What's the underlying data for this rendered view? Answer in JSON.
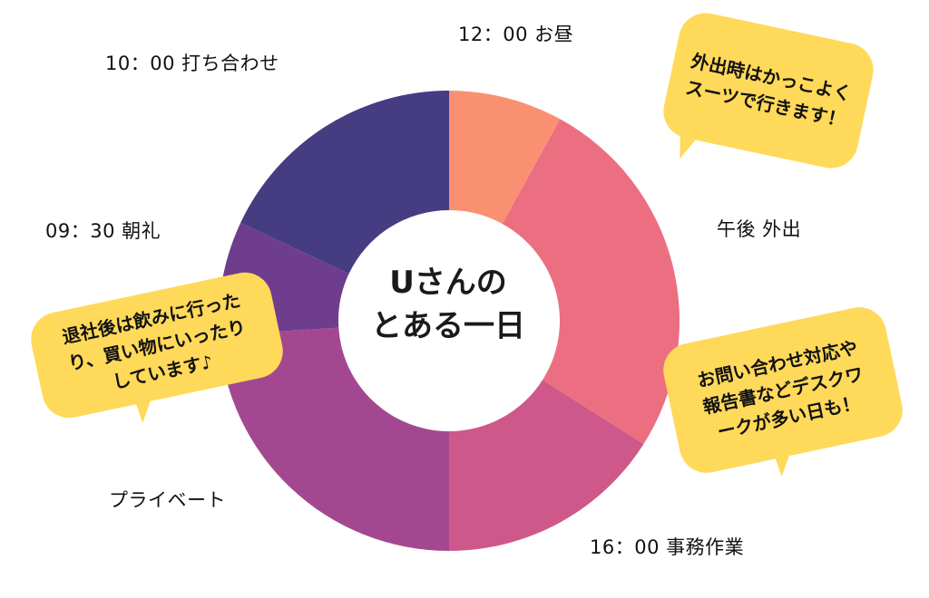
{
  "chart_data": {
    "type": "pie",
    "style": "donut",
    "center_title": [
      "Uさんの",
      "とある一日"
    ],
    "slices": [
      {
        "label": "12：00 お昼",
        "value": 8,
        "color": "#FA9072"
      },
      {
        "label": "午後 外出",
        "value": 26,
        "color": "#EB6F80"
      },
      {
        "label": "16：00 事務作業",
        "value": 16,
        "color": "#CD5889"
      },
      {
        "label": "プライベート",
        "value": 24,
        "color": "#A34890"
      },
      {
        "label": "09：30 朝礼",
        "value": 8,
        "color": "#6F3D8D"
      },
      {
        "label": "10：00 打ち合わせ",
        "value": 18,
        "color": "#463C82"
      }
    ]
  },
  "bubbles": [
    {
      "lines": [
        "外出時はかっこよく",
        "スーツで行きます！"
      ],
      "color": "#FFD95A"
    },
    {
      "lines": [
        "お問い合わせ対応や",
        "報告書などデスクワ",
        "ークが多い日も！"
      ],
      "color": "#FFD95A"
    },
    {
      "lines": [
        "退社後は飲みに行った",
        "り、買い物にいったり",
        "しています♪"
      ],
      "color": "#FFD95A"
    }
  ]
}
